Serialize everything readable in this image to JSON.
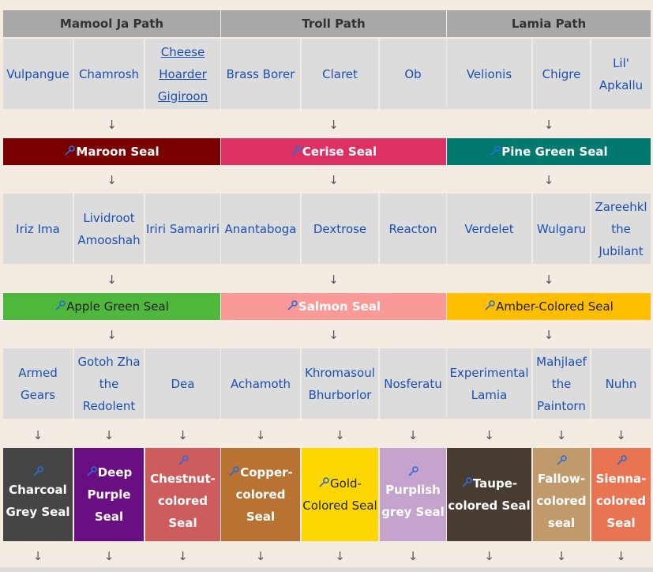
{
  "paths": [
    "Mamool Ja Path",
    "Troll Path",
    "Lamia Path"
  ],
  "arrow": "↓",
  "tier1": [
    "Vulpangue",
    "Chamrosh",
    "Cheese Hoarder Gigiroon",
    "Brass Borer",
    "Claret",
    "Ob",
    "Velionis",
    "Chigre",
    "Lil' Apkallu"
  ],
  "seals1": [
    {
      "label": "Maroon Seal",
      "bg": "#7a0000"
    },
    {
      "label": "Cerise Seal",
      "bg": "#de3163"
    },
    {
      "label": "Pine Green Seal",
      "bg": "#01796f"
    }
  ],
  "tier2": [
    "Iriz Ima",
    "Lividroot Amooshah",
    "Iriri Samariri",
    "Anantaboga",
    "Dextrose",
    "Reacton",
    "Verdelet",
    "Wulgaru",
    "Zareehkl the Jubilant"
  ],
  "seals2": [
    {
      "label": "Apple Green Seal",
      "bg": "#4fb83c"
    },
    {
      "label": "Salmon Seal",
      "bg": "#fa9a98"
    },
    {
      "label": "Amber-Colored Seal",
      "bg": "#ffbf00"
    }
  ],
  "tier3": [
    "Armed Gears",
    "Gotoh Zha the Redolent",
    "Dea",
    "Achamoth",
    "Khromasoul Bhurborlor",
    "Nosferatu",
    "Experimental Lamia",
    "Mahjlaef the Paintorn",
    "Nuhn"
  ],
  "seals3": [
    {
      "label": "Charcoal Grey Seal",
      "bg": "#454545"
    },
    {
      "label": "Deep Purple Seal",
      "bg": "#6a0f82"
    },
    {
      "label": "Chestnut-colored Seal",
      "bg": "#cd5c5c"
    },
    {
      "label": "Copper-colored Seal",
      "bg": "#b87333"
    },
    {
      "label": "Gold-Colored Seal",
      "bg": "#ffd700"
    },
    {
      "label": "Purplish grey Seal",
      "bg": "#c4a3cc"
    },
    {
      "label": "Taupe-colored Seal",
      "bg": "#483c32"
    },
    {
      "label": "Fallow-colored seal",
      "bg": "#c19a6b"
    },
    {
      "label": "Sienna-colored Seal",
      "bg": "#e87451"
    }
  ],
  "icon": "key-icon",
  "link_color": "#1a4fb5"
}
